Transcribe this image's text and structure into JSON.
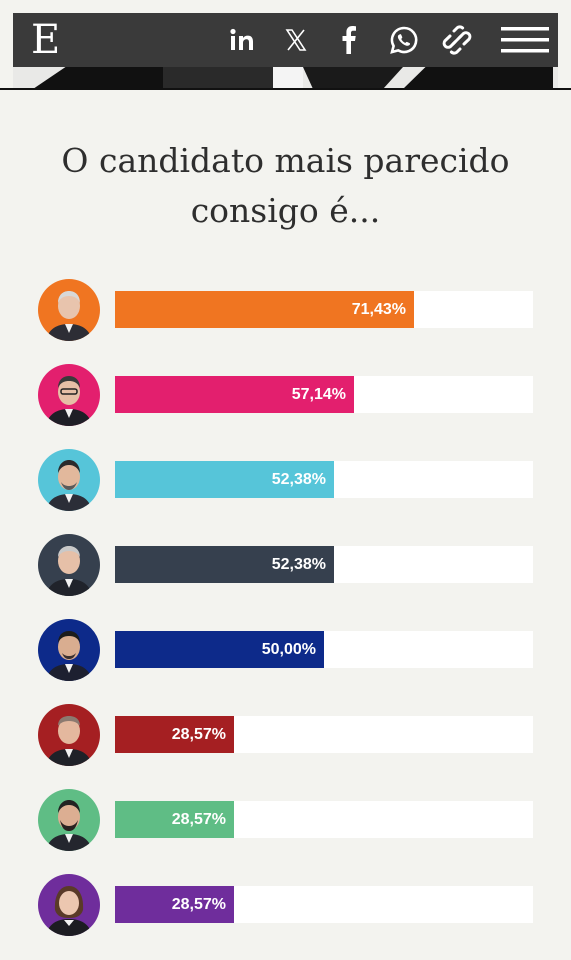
{
  "header": {
    "logo": "E",
    "share": [
      "linkedin-icon",
      "x-icon",
      "facebook-icon",
      "whatsapp-icon",
      "link-icon",
      "menu-icon"
    ]
  },
  "quiz": {
    "title_line1": "O candidato mais parecido",
    "title_line2": "consigo é..."
  },
  "results": [
    {
      "percent": 71.43,
      "label": "71,43%",
      "color": "#f07521"
    },
    {
      "percent": 57.14,
      "label": "57,14%",
      "color": "#e31f6e"
    },
    {
      "percent": 52.38,
      "label": "52,38%",
      "color": "#56c5d9"
    },
    {
      "percent": 52.38,
      "label": "52,38%",
      "color": "#36404e"
    },
    {
      "percent": 50.0,
      "label": "50,00%",
      "color": "#0d2a8a"
    },
    {
      "percent": 28.57,
      "label": "28,57%",
      "color": "#a51f22"
    },
    {
      "percent": 28.57,
      "label": "28,57%",
      "color": "#5fbd85"
    },
    {
      "percent": 28.57,
      "label": "28,57%",
      "color": "#6f2d9c"
    }
  ]
}
